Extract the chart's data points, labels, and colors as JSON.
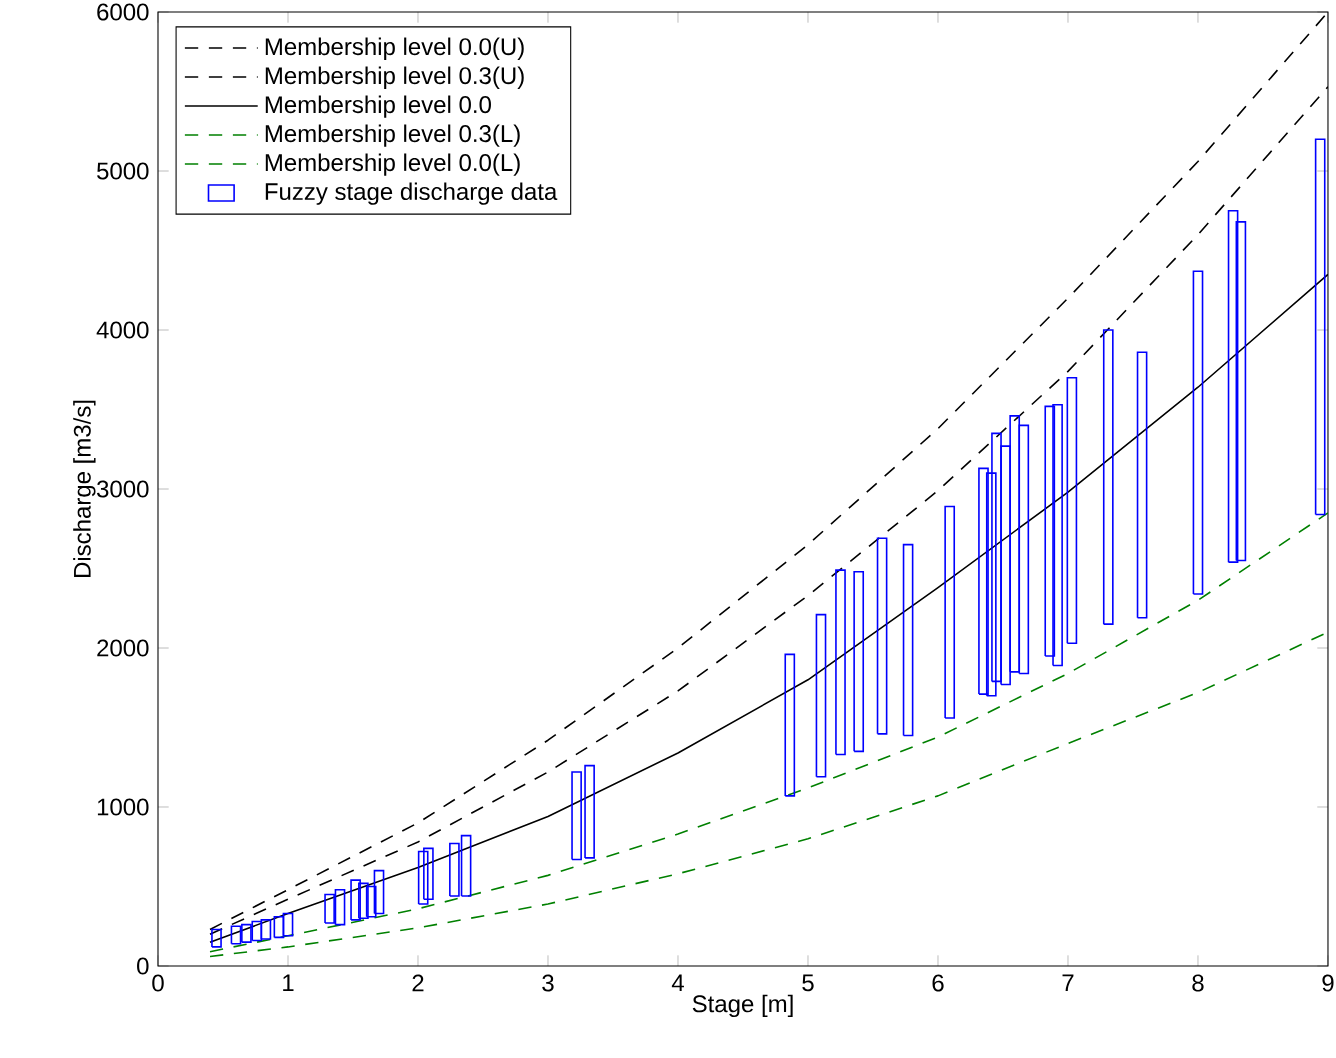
{
  "chart_data": {
    "type": "line",
    "xlabel": "Stage [m]",
    "ylabel": "Discharge [m3/s]",
    "xlim": [
      0,
      9
    ],
    "ylim": [
      0,
      6000
    ],
    "xticks": [
      0,
      1,
      2,
      3,
      4,
      5,
      6,
      7,
      8,
      9
    ],
    "yticks": [
      0,
      1000,
      2000,
      3000,
      4000,
      5000,
      6000
    ],
    "legend": "top left",
    "grid": false,
    "marker": "none",
    "x": [
      0.4,
      1,
      2,
      3,
      4,
      5,
      6,
      7,
      8,
      9
    ],
    "series": [
      {
        "name": "Membership level 0.0(U)",
        "color": "#000000",
        "line_style": "dashed",
        "values": [
          230,
          480,
          900,
          1420,
          2000,
          2650,
          3380,
          4200,
          5060,
          6000
        ]
      },
      {
        "name": "Membership level 0.3(U)",
        "color": "#000000",
        "line_style": "dashed",
        "values": [
          200,
          420,
          780,
          1220,
          1730,
          2330,
          2990,
          3740,
          4600,
          5530
        ]
      },
      {
        "name": "Membership level 0.0",
        "color": "#000000",
        "line_style": "solid",
        "values": [
          150,
          330,
          620,
          940,
          1340,
          1800,
          2380,
          2980,
          3640,
          4350
        ]
      },
      {
        "name": "Membership level 0.3(L)",
        "color": "#008000",
        "line_style": "dashed",
        "values": [
          90,
          190,
          360,
          570,
          830,
          1120,
          1440,
          1840,
          2300,
          2850
        ]
      },
      {
        "name": "Membership level 0.0(L)",
        "color": "#008000",
        "line_style": "dashed",
        "values": [
          60,
          120,
          240,
          390,
          580,
          800,
          1070,
          1400,
          1720,
          2100
        ]
      },
      {
        "name": "Fuzzy stage discharge data",
        "type": "bar",
        "color": "#0000ff",
        "x": [
          0.45,
          0.6,
          0.68,
          0.76,
          0.83,
          0.93,
          1.0,
          1.32,
          1.4,
          1.52,
          1.58,
          1.64,
          1.7,
          2.04,
          2.08,
          2.28,
          2.37,
          3.22,
          3.32,
          4.86,
          5.1,
          5.25,
          5.39,
          5.57,
          5.77,
          6.09,
          6.35,
          6.41,
          6.45,
          6.52,
          6.59,
          6.66,
          6.86,
          6.92,
          7.03,
          7.31,
          7.57,
          8.0,
          8.27,
          8.33,
          8.94
        ],
        "base": [
          120,
          140,
          150,
          160,
          170,
          180,
          190,
          270,
          260,
          290,
          300,
          310,
          330,
          390,
          420,
          440,
          440,
          670,
          680,
          1070,
          1190,
          1330,
          1350,
          1460,
          1450,
          1560,
          1710,
          1700,
          1790,
          1770,
          1850,
          1840,
          1950,
          1890,
          2030,
          2150,
          2190,
          2340,
          2540,
          2550,
          2840
        ],
        "values": [
          110,
          110,
          110,
          120,
          120,
          130,
          140,
          180,
          220,
          250,
          220,
          190,
          270,
          330,
          320,
          330,
          380,
          550,
          580,
          890,
          1020,
          1160,
          1130,
          1230,
          1200,
          1330,
          1420,
          1400,
          1560,
          1500,
          1610,
          1560,
          1570,
          1640,
          1670,
          1850,
          1670,
          2030,
          2210,
          2130,
          2360
        ]
      }
    ]
  }
}
